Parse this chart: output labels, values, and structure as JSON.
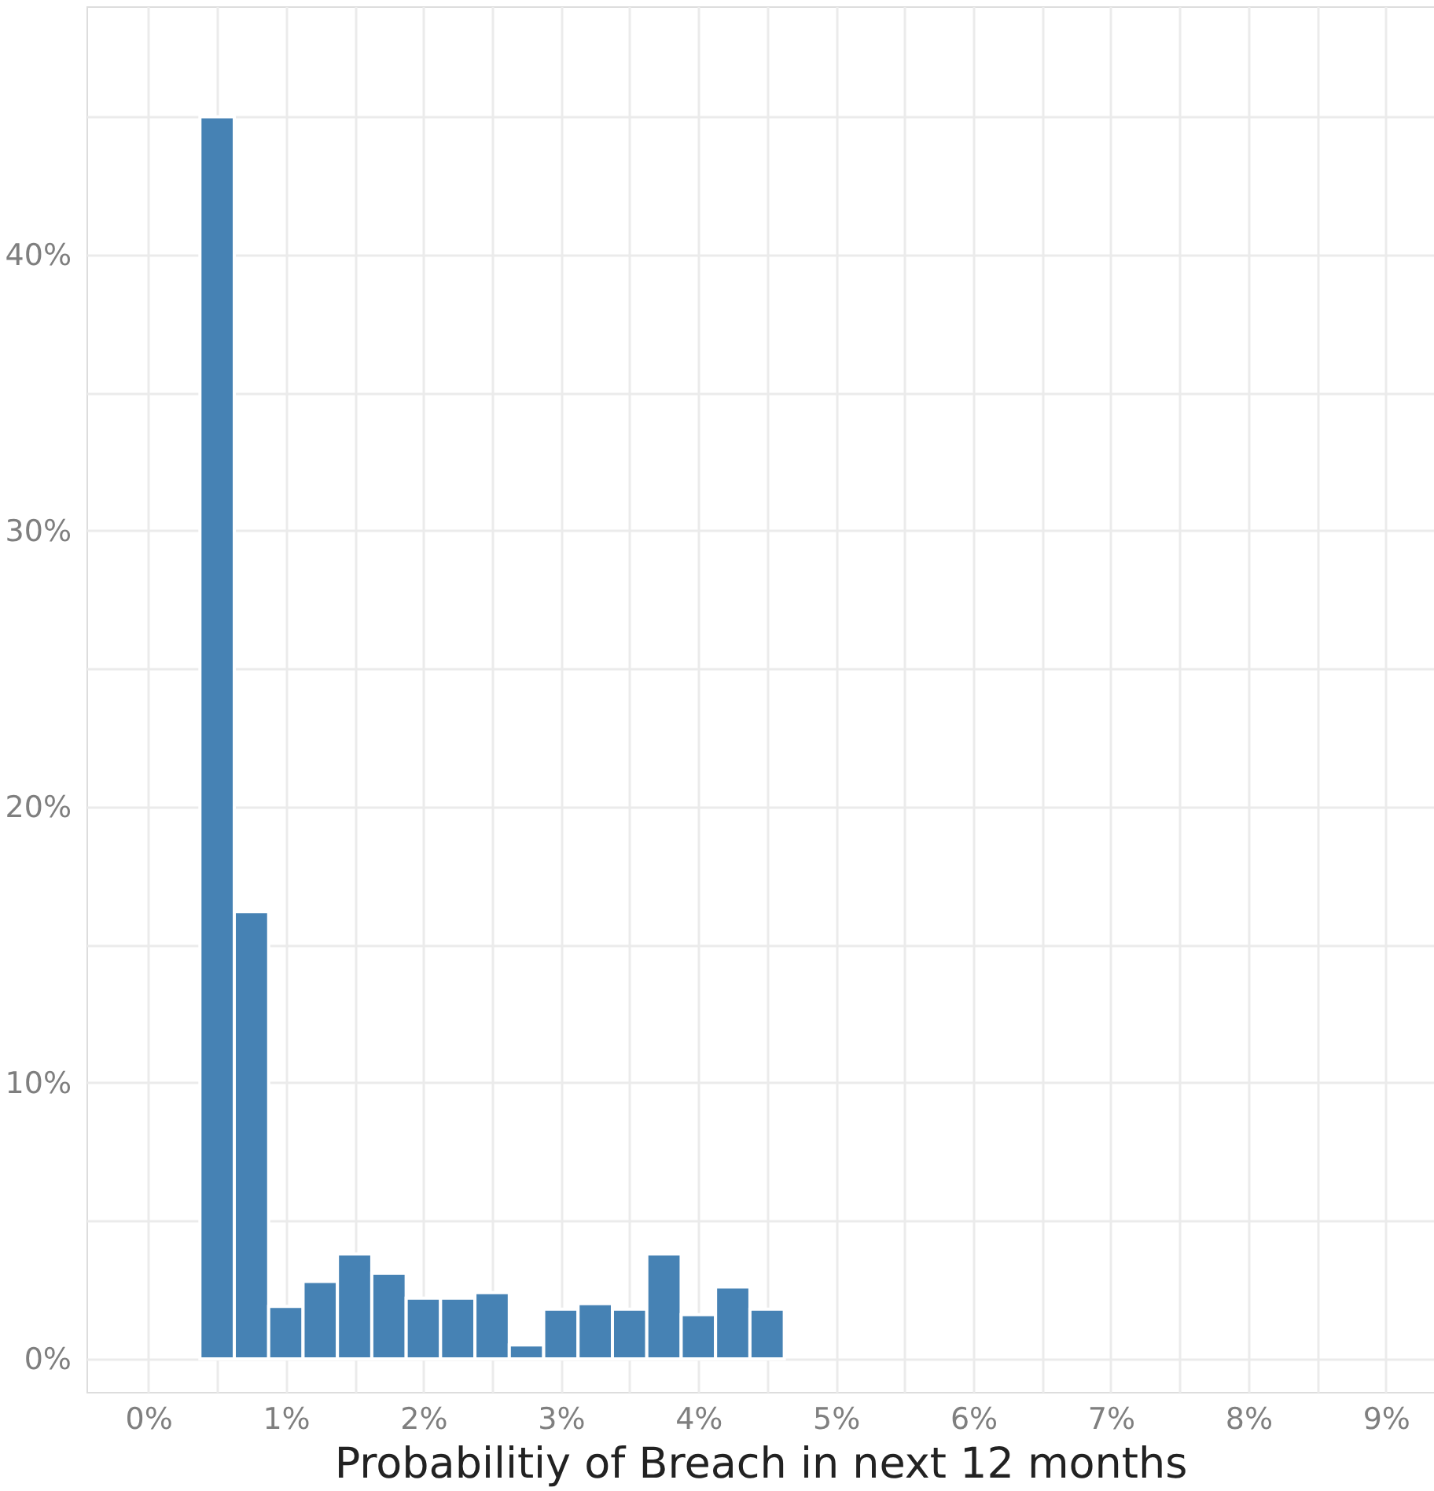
{
  "chart_data": {
    "type": "histogram",
    "xlabel": "Probabilitiy of Breach in next 12 months",
    "bins": [
      0.375,
      0.625,
      0.875,
      1.125,
      1.375,
      1.625,
      1.875,
      2.125,
      2.375,
      2.625,
      2.875,
      3.125,
      3.375,
      3.625,
      3.875,
      4.125,
      4.375,
      4.625
    ],
    "values": [
      45.0,
      16.2,
      1.9,
      2.8,
      3.8,
      3.1,
      2.2,
      2.2,
      2.4,
      0.5,
      1.8,
      2.0,
      1.8,
      3.8,
      1.6,
      2.6,
      1.8
    ],
    "color": "#4682b4",
    "xlim": [
      -0.45,
      9.35
    ],
    "ylim": [
      -1.2,
      49
    ],
    "xticks": [
      {
        "value": 0,
        "label": "0%"
      },
      {
        "value": 0.5,
        "label": null
      },
      {
        "value": 1,
        "label": "1%"
      },
      {
        "value": 1.5,
        "label": null
      },
      {
        "value": 2,
        "label": "2%"
      },
      {
        "value": 2.5,
        "label": null
      },
      {
        "value": 3,
        "label": "3%"
      },
      {
        "value": 3.5,
        "label": null
      },
      {
        "value": 4,
        "label": "4%"
      },
      {
        "value": 4.5,
        "label": null
      },
      {
        "value": 5,
        "label": "5%"
      },
      {
        "value": 5.5,
        "label": null
      },
      {
        "value": 6,
        "label": "6%"
      },
      {
        "value": 6.5,
        "label": null
      },
      {
        "value": 7,
        "label": "7%"
      },
      {
        "value": 7.5,
        "label": null
      },
      {
        "value": 8,
        "label": "8%"
      },
      {
        "value": 8.5,
        "label": null
      },
      {
        "value": 9,
        "label": "9%"
      }
    ],
    "yticks": [
      {
        "value": 0,
        "label": "0%"
      },
      {
        "value": 5,
        "label": null
      },
      {
        "value": 10,
        "label": "10%"
      },
      {
        "value": 15,
        "label": null
      },
      {
        "value": 20,
        "label": "20%"
      },
      {
        "value": 25,
        "label": null
      },
      {
        "value": 30,
        "label": "30%"
      },
      {
        "value": 35,
        "label": null
      },
      {
        "value": 40,
        "label": "40%"
      },
      {
        "value": 45,
        "label": null
      }
    ],
    "grid": true
  }
}
